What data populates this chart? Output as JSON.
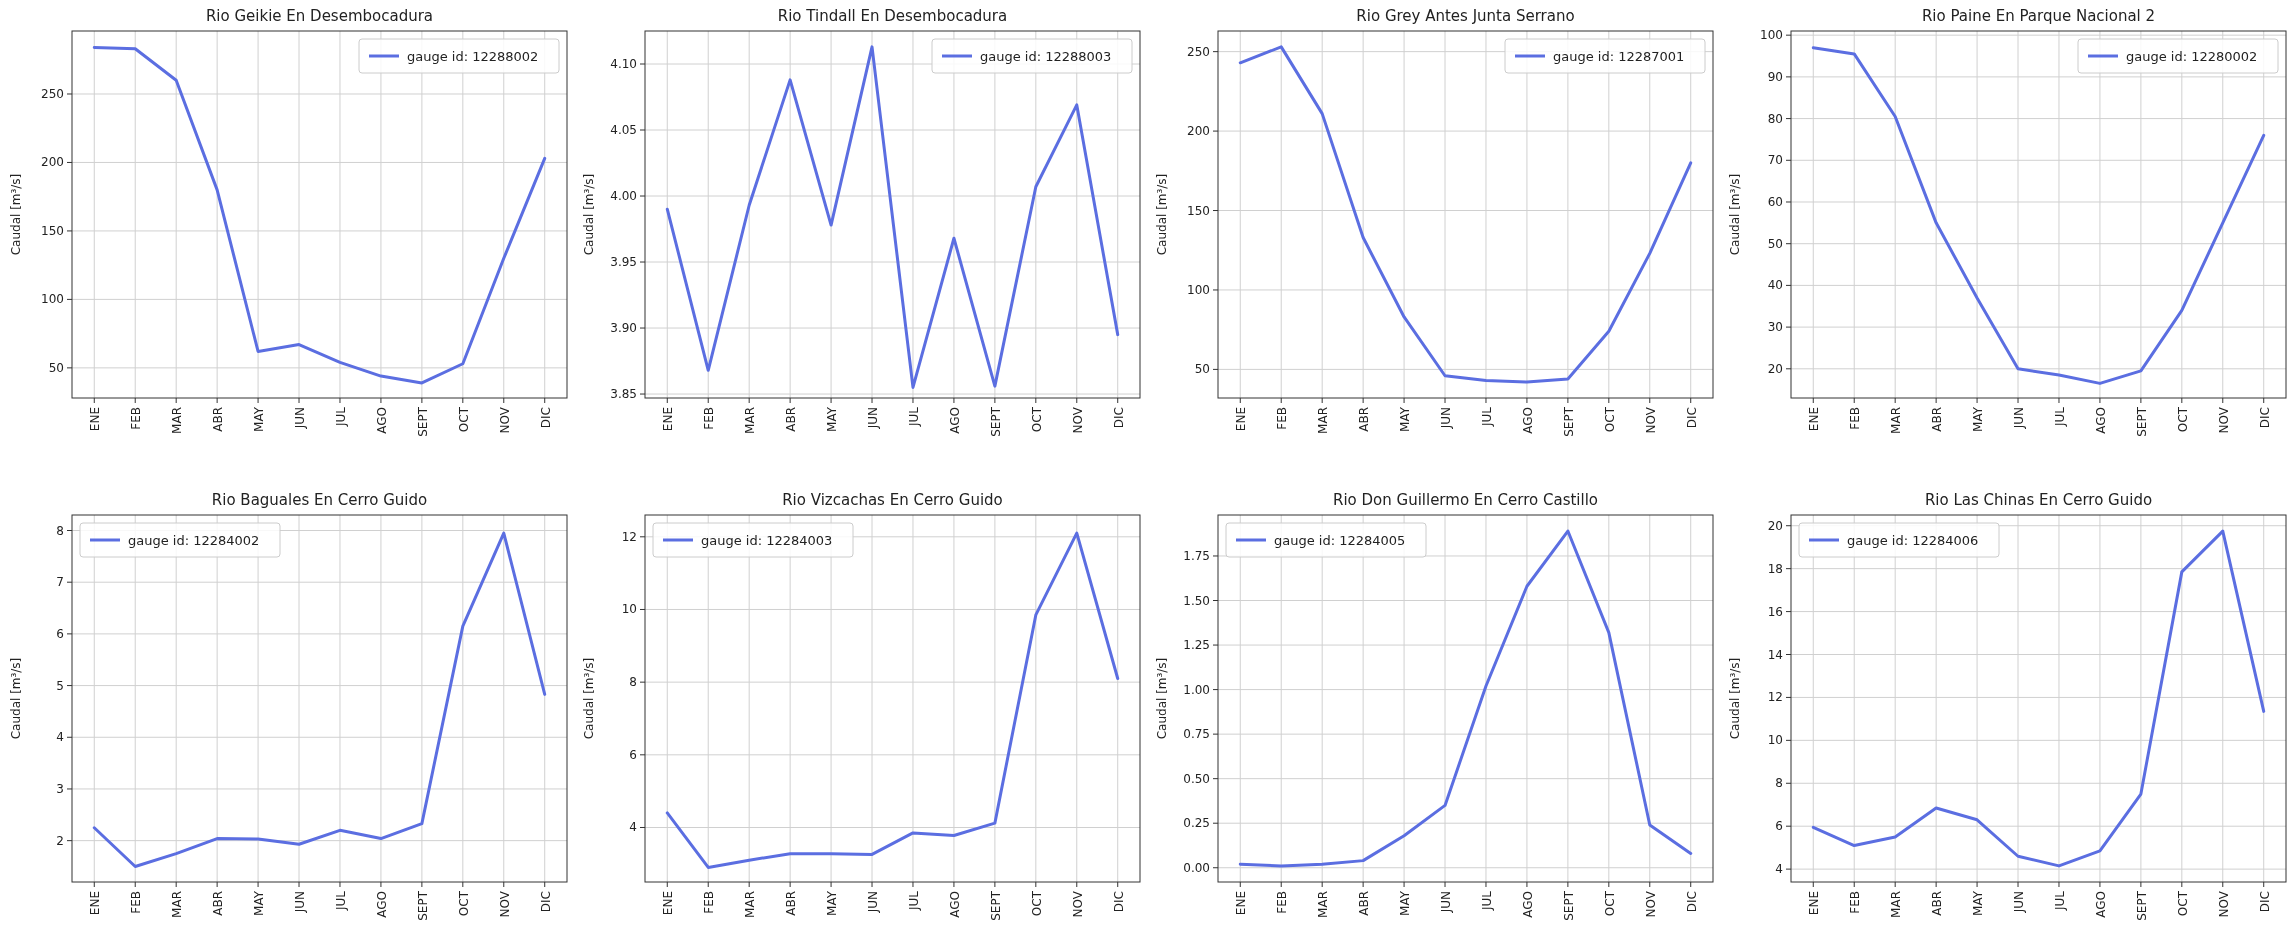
{
  "chart_data": [
    {
      "type": "line",
      "title": "Rio Geikie En Desembocadura",
      "ylabel": "Caudal [m³/s]",
      "categories": [
        "ENE",
        "FEB",
        "MAR",
        "ABR",
        "MAY",
        "JUN",
        "JUL",
        "AGO",
        "SEPT",
        "OCT",
        "NOV",
        "DIC"
      ],
      "series": [
        {
          "name": "gauge id: 12288002",
          "color": "#5b6ee1",
          "values": [
            284,
            283,
            260,
            180,
            62,
            67,
            54,
            44,
            39,
            53,
            130,
            203
          ]
        }
      ],
      "ylim": [
        28,
        296
      ],
      "yticks": [
        50,
        100,
        150,
        200,
        250
      ],
      "grid": true,
      "legend": "top right"
    },
    {
      "type": "line",
      "title": "Rio Tindall En Desembocadura",
      "ylabel": "Caudal [m³/s]",
      "categories": [
        "ENE",
        "FEB",
        "MAR",
        "ABR",
        "MAY",
        "JUN",
        "JUL",
        "AGO",
        "SEPT",
        "OCT",
        "NOV",
        "DIC"
      ],
      "series": [
        {
          "name": "gauge id: 12288003",
          "color": "#5b6ee1",
          "values": [
            3.99,
            3.868,
            3.993,
            4.088,
            3.978,
            4.113,
            3.855,
            3.968,
            3.856,
            4.007,
            4.069,
            3.895
          ]
        }
      ],
      "ylim": [
        3.847,
        4.125
      ],
      "yticks": [
        {
          "value": 3.85,
          "label": "3.85"
        },
        {
          "value": 3.9,
          "label": "3.90"
        },
        {
          "value": 3.95,
          "label": "3.95"
        },
        {
          "value": 4.0,
          "label": "4.00"
        },
        {
          "value": 4.05,
          "label": "4.05"
        },
        {
          "value": 4.1,
          "label": "4.10"
        }
      ],
      "grid": true,
      "legend": "top right"
    },
    {
      "type": "line",
      "title": "Rio Grey Antes Junta Serrano",
      "ylabel": "Caudal [m³/s]",
      "categories": [
        "ENE",
        "FEB",
        "MAR",
        "ABR",
        "MAY",
        "JUN",
        "JUL",
        "AGO",
        "SEPT",
        "OCT",
        "NOV",
        "DIC"
      ],
      "series": [
        {
          "name": "gauge id: 12287001",
          "color": "#5b6ee1",
          "values": [
            243,
            253,
            211,
            133,
            83,
            46,
            43,
            42,
            44,
            74,
            123,
            180
          ]
        }
      ],
      "ylim": [
        32,
        263
      ],
      "yticks": [
        50,
        100,
        150,
        200,
        250
      ],
      "grid": true,
      "legend": "top right"
    },
    {
      "type": "line",
      "title": "Rio Paine En Parque Nacional 2",
      "ylabel": "Caudal [m³/s]",
      "categories": [
        "ENE",
        "FEB",
        "MAR",
        "ABR",
        "MAY",
        "JUN",
        "JUL",
        "AGO",
        "SEPT",
        "OCT",
        "NOV",
        "DIC"
      ],
      "series": [
        {
          "name": "gauge id: 12280002",
          "color": "#5b6ee1",
          "values": [
            97,
            95.5,
            80.5,
            55,
            37,
            20,
            18.5,
            16.5,
            19.5,
            34,
            55,
            76
          ]
        }
      ],
      "ylim": [
        13,
        101
      ],
      "yticks": [
        20,
        30,
        40,
        50,
        60,
        70,
        80,
        90,
        100
      ],
      "grid": true,
      "legend": "top right"
    },
    {
      "type": "line",
      "title": "Rio Baguales En Cerro Guido",
      "ylabel": "Caudal [m³/s]",
      "categories": [
        "ENE",
        "FEB",
        "MAR",
        "ABR",
        "MAY",
        "JUN",
        "JUL",
        "AGO",
        "SEPT",
        "OCT",
        "NOV",
        "DIC"
      ],
      "series": [
        {
          "name": "gauge id: 12284002",
          "color": "#5b6ee1",
          "values": [
            2.25,
            1.5,
            1.75,
            2.04,
            2.03,
            1.93,
            2.2,
            2.04,
            2.33,
            6.15,
            7.95,
            4.83
          ]
        }
      ],
      "ylim": [
        1.2,
        8.3
      ],
      "yticks": [
        2,
        3,
        4,
        5,
        6,
        7,
        8
      ],
      "grid": true,
      "legend": "top left"
    },
    {
      "type": "line",
      "title": "Rio Vizcachas En Cerro Guido",
      "ylabel": "Caudal [m³/s]",
      "categories": [
        "ENE",
        "FEB",
        "MAR",
        "ABR",
        "MAY",
        "JUN",
        "JUL",
        "AGO",
        "SEPT",
        "OCT",
        "NOV",
        "DIC"
      ],
      "series": [
        {
          "name": "gauge id: 12284003",
          "color": "#5b6ee1",
          "values": [
            4.4,
            2.9,
            3.1,
            3.28,
            3.28,
            3.26,
            3.85,
            3.78,
            4.12,
            9.85,
            12.1,
            8.1
          ]
        }
      ],
      "ylim": [
        2.5,
        12.6
      ],
      "yticks": [
        4,
        6,
        8,
        10,
        12
      ],
      "grid": true,
      "legend": "top left"
    },
    {
      "type": "line",
      "title": "Rio Don Guillermo En Cerro Castillo",
      "ylabel": "Caudal [m³/s]",
      "categories": [
        "ENE",
        "FEB",
        "MAR",
        "ABR",
        "MAY",
        "JUN",
        "JUL",
        "AGO",
        "SEPT",
        "OCT",
        "NOV",
        "DIC"
      ],
      "series": [
        {
          "name": "gauge id: 12284005",
          "color": "#5b6ee1",
          "values": [
            0.02,
            0.01,
            0.02,
            0.04,
            0.18,
            0.35,
            1.02,
            1.58,
            1.89,
            1.32,
            0.24,
            0.08
          ]
        }
      ],
      "ylim": [
        -0.08,
        1.98
      ],
      "yticks": [
        {
          "value": 0,
          "label": "0.00"
        },
        {
          "value": 0.25,
          "label": "0.25"
        },
        {
          "value": 0.5,
          "label": "0.50"
        },
        {
          "value": 0.75,
          "label": "0.75"
        },
        {
          "value": 1,
          "label": "1.00"
        },
        {
          "value": 1.25,
          "label": "1.25"
        },
        {
          "value": 1.5,
          "label": "1.50"
        },
        {
          "value": 1.75,
          "label": "1.75"
        }
      ],
      "grid": true,
      "legend": "top left"
    },
    {
      "type": "line",
      "title": "Rio Las Chinas En Cerro Guido",
      "ylabel": "Caudal [m³/s]",
      "categories": [
        "ENE",
        "FEB",
        "MAR",
        "ABR",
        "MAY",
        "JUN",
        "JUL",
        "AGO",
        "SEPT",
        "OCT",
        "NOV",
        "DIC"
      ],
      "series": [
        {
          "name": "gauge id: 12284006",
          "color": "#5b6ee1",
          "values": [
            5.95,
            5.1,
            5.5,
            6.85,
            6.3,
            4.6,
            4.15,
            4.85,
            7.5,
            17.85,
            19.75,
            11.35
          ]
        }
      ],
      "ylim": [
        3.4,
        20.5
      ],
      "yticks": [
        4,
        6,
        8,
        10,
        12,
        14,
        16,
        18,
        20
      ],
      "grid": true,
      "legend": "top left"
    }
  ]
}
